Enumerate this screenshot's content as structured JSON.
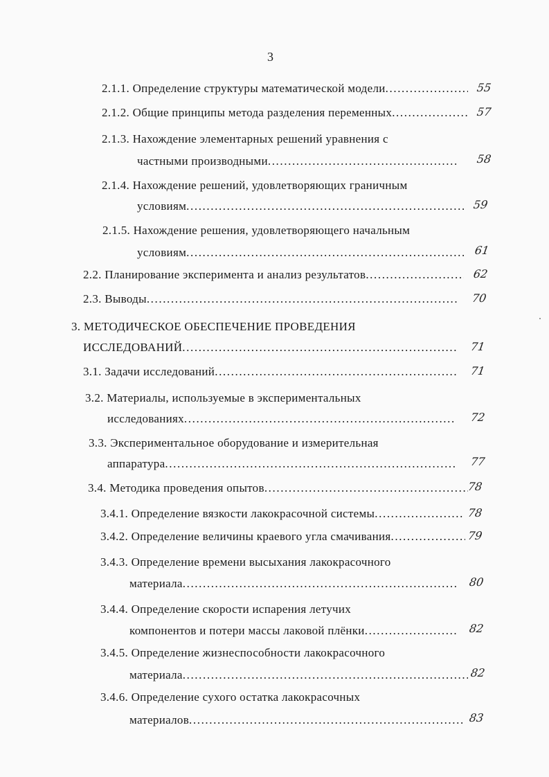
{
  "page_number": "3",
  "toc": [
    {
      "lines": [
        "2.1.1. Определение структуры математической модели"
      ],
      "page": "55"
    },
    {
      "lines": [
        "2.1.2. Общие принципы метода разделения переменных"
      ],
      "page": "57"
    },
    {
      "lines": [
        "2.1.3. Нахождение элементарных решений уравнения с",
        "частными производными"
      ],
      "page": "58"
    },
    {
      "lines": [
        "2.1.4. Нахождение решений, удовлетворяющих граничным",
        "условиям"
      ],
      "page": "59"
    },
    {
      "lines": [
        "2.1.5. Нахождение решения, удовлетворяющего начальным",
        "условиям"
      ],
      "page": "61"
    },
    {
      "lines": [
        "2.2. Планирование эксперимента и анализ результатов"
      ],
      "page": "62"
    },
    {
      "lines": [
        "2.3. Выводы"
      ],
      "page": "70"
    },
    {
      "lines": [
        "3. МЕТОДИЧЕСКОЕ ОБЕСПЕЧЕНИЕ ПРОВЕДЕНИЯ",
        "ИССЛЕДОВАНИЙ"
      ],
      "page": "71"
    },
    {
      "lines": [
        "3.1. Задачи исследований"
      ],
      "page": "71"
    },
    {
      "lines": [
        "3.2. Материалы, используемые в экспериментальных",
        "исследованиях"
      ],
      "page": "72"
    },
    {
      "lines": [
        "3.3. Экспериментальное оборудование и измерительная",
        "аппаратура"
      ],
      "page": "77"
    },
    {
      "lines": [
        "3.4. Методика проведения опытов"
      ],
      "page": "78"
    },
    {
      "lines": [
        "3.4.1. Определение вязкости лакокрасочной системы"
      ],
      "page": "78"
    },
    {
      "lines": [
        "3.4.2. Определение величины краевого угла смачивания"
      ],
      "page": "79"
    },
    {
      "lines": [
        "3.4.3. Определение времени высыхания лакокрасочного",
        "материала"
      ],
      "page": "80"
    },
    {
      "lines": [
        "3.4.4. Определение скорости испарения летучих",
        "компонентов и потери массы лаковой плёнки"
      ],
      "page": "82"
    },
    {
      "lines": [
        "3.4.5. Определение жизнеспособности лакокрасочного",
        "материала"
      ],
      "page": "82"
    },
    {
      "lines": [
        "3.4.6. Определение сухого остатка лакокрасочных",
        "материалов"
      ],
      "page": "83"
    }
  ]
}
